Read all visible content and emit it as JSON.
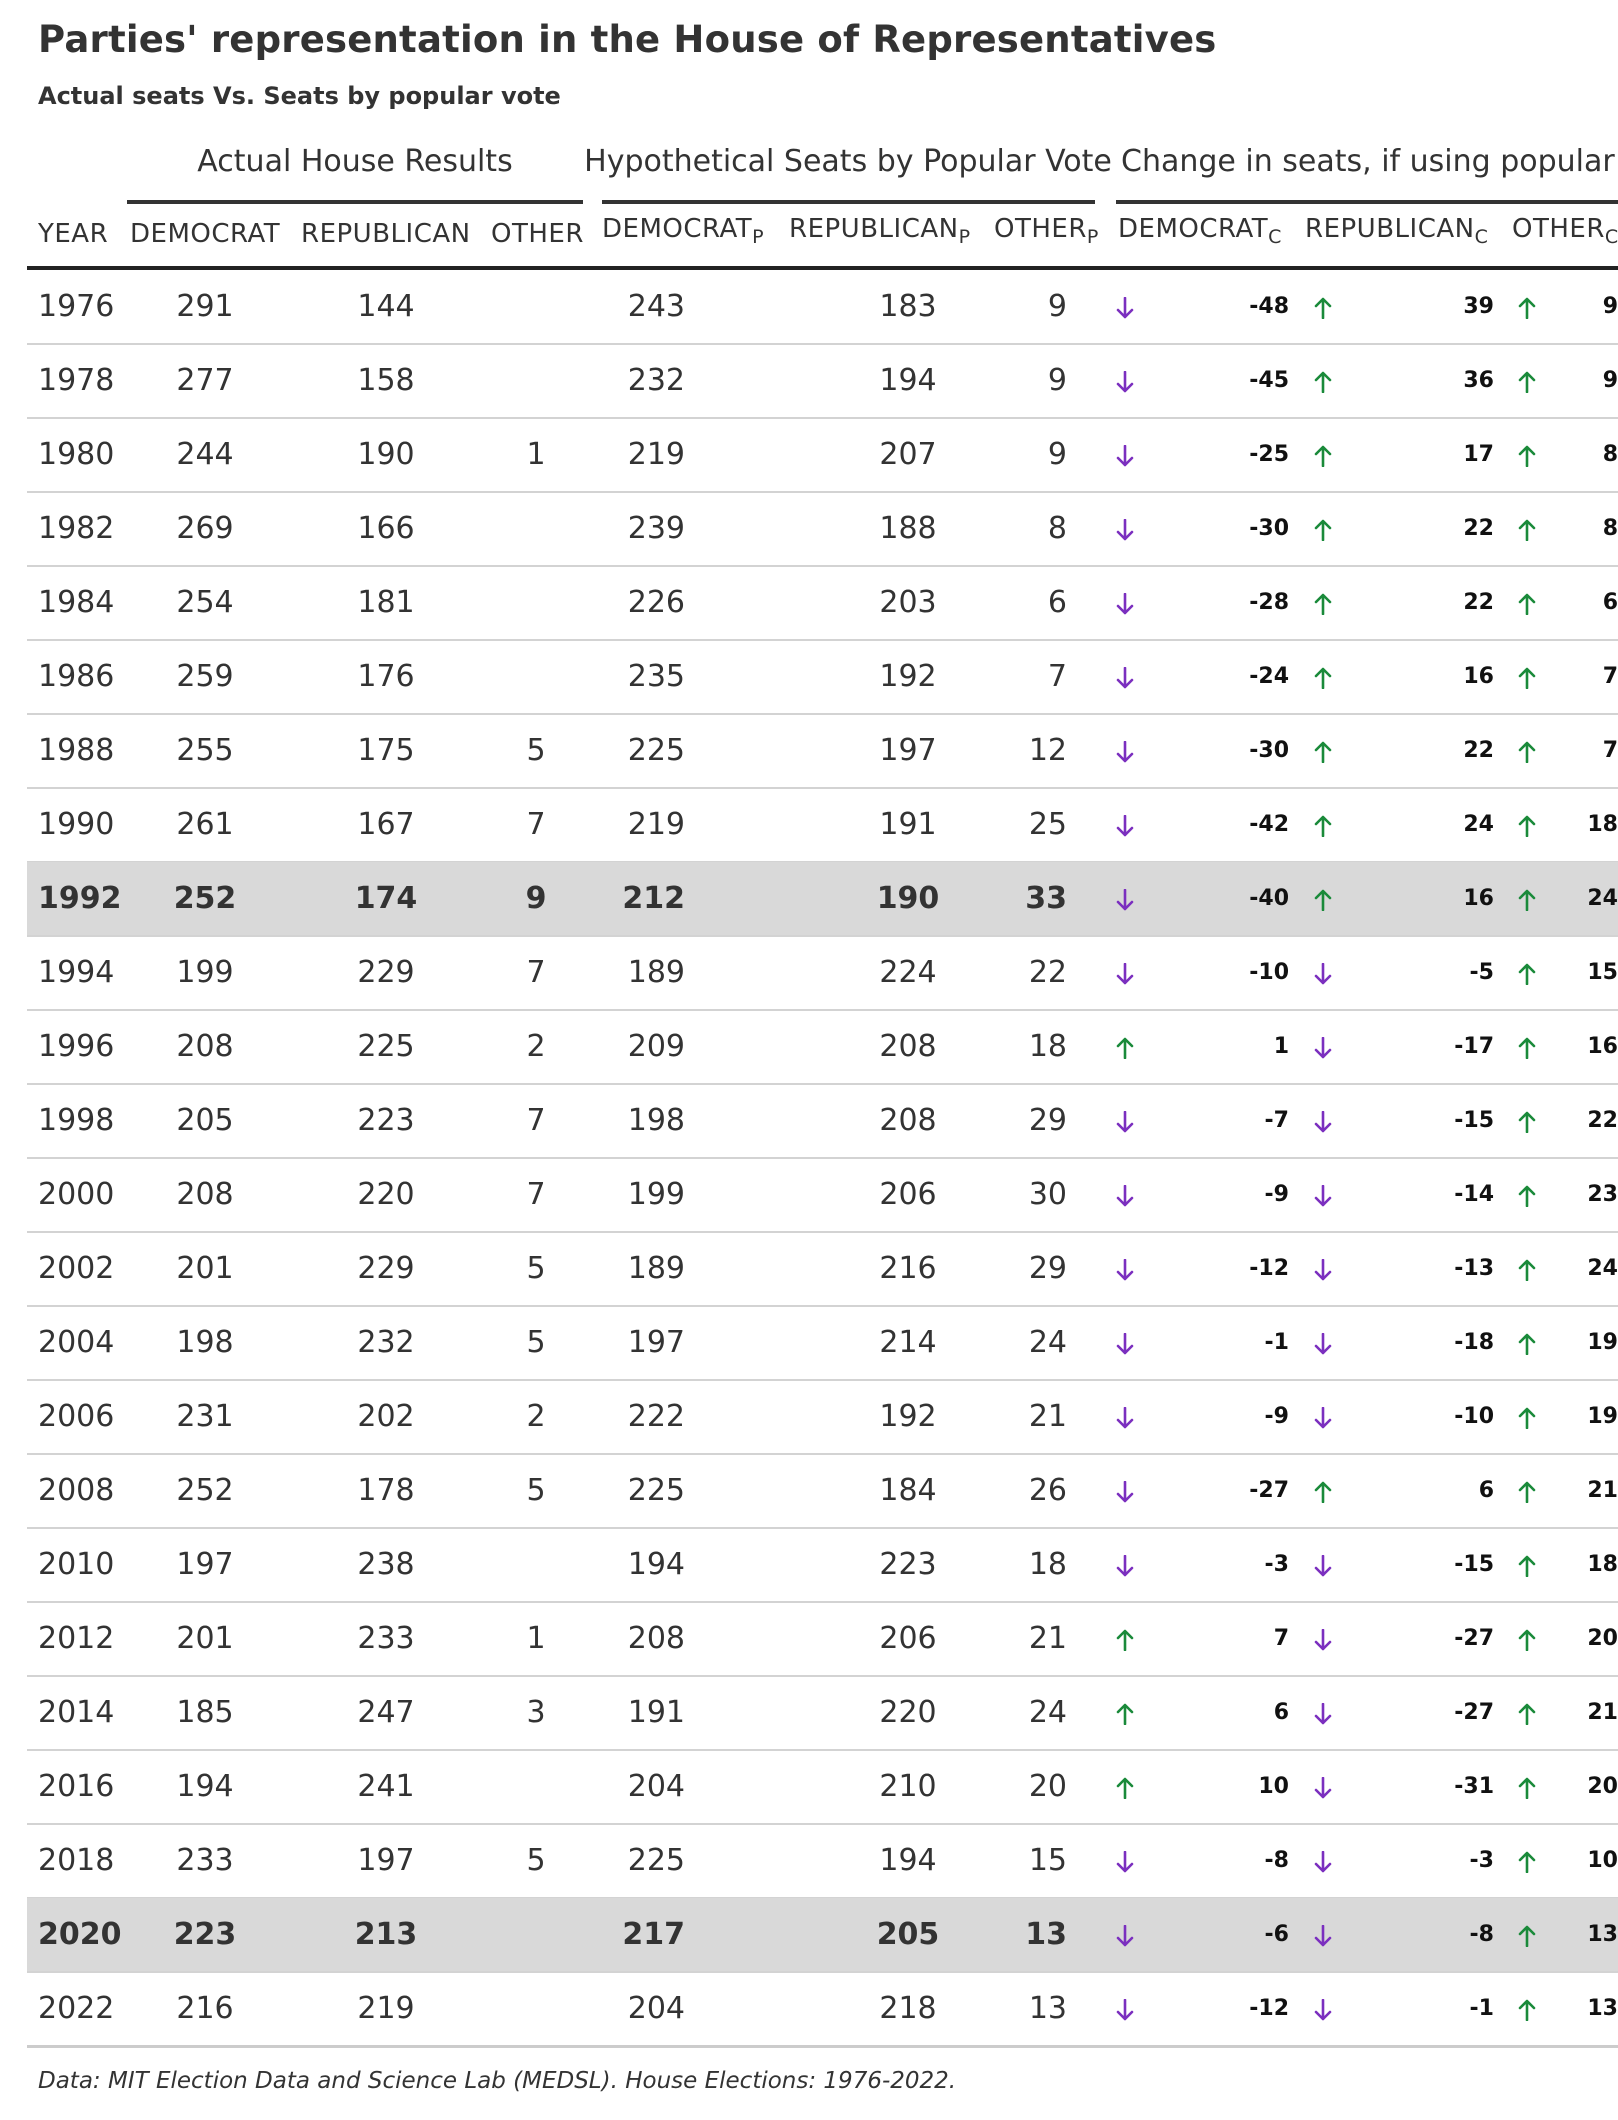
{
  "title": "Parties' representation in the House of Representatives",
  "subtitle": "Actual seats Vs. Seats by popular vote",
  "spanners": [
    "Actual House Results",
    "Hypothetical Seats by Popular Vote",
    "Change in seats, if using popular vote"
  ],
  "columns": {
    "year": "YEAR",
    "democrat": "DEMOCRAT",
    "republican": "REPUBLICAN",
    "other": "OTHER",
    "democrat_p": "DEMOCRAT",
    "republican_p": "REPUBLICAN",
    "other_p": "OTHER",
    "democrat_c": "DEMOCRAT",
    "republican_c": "REPUBLICAN",
    "other_c": "OTHER",
    "sub_p": "P",
    "sub_c": "C"
  },
  "colors": {
    "up": "#1a8a3a",
    "down": "#7b2fbf",
    "highlight": "#d9d9d9"
  },
  "footer": "Data: MIT Election Data and Science Lab (MEDSL). House Elections: 1976-2022.",
  "chart_data": {
    "type": "table",
    "highlighted_years": [
      "1992",
      "2020"
    ],
    "rows": [
      {
        "year": "1976",
        "dem": "291",
        "rep": "144",
        "other": "",
        "dem_p": "243",
        "rep_p": "183",
        "other_p": "9",
        "dem_c": "-48",
        "rep_c": "39",
        "other_c": "9"
      },
      {
        "year": "1978",
        "dem": "277",
        "rep": "158",
        "other": "",
        "dem_p": "232",
        "rep_p": "194",
        "other_p": "9",
        "dem_c": "-45",
        "rep_c": "36",
        "other_c": "9"
      },
      {
        "year": "1980",
        "dem": "244",
        "rep": "190",
        "other": "1",
        "dem_p": "219",
        "rep_p": "207",
        "other_p": "9",
        "dem_c": "-25",
        "rep_c": "17",
        "other_c": "8"
      },
      {
        "year": "1982",
        "dem": "269",
        "rep": "166",
        "other": "",
        "dem_p": "239",
        "rep_p": "188",
        "other_p": "8",
        "dem_c": "-30",
        "rep_c": "22",
        "other_c": "8"
      },
      {
        "year": "1984",
        "dem": "254",
        "rep": "181",
        "other": "",
        "dem_p": "226",
        "rep_p": "203",
        "other_p": "6",
        "dem_c": "-28",
        "rep_c": "22",
        "other_c": "6"
      },
      {
        "year": "1986",
        "dem": "259",
        "rep": "176",
        "other": "",
        "dem_p": "235",
        "rep_p": "192",
        "other_p": "7",
        "dem_c": "-24",
        "rep_c": "16",
        "other_c": "7"
      },
      {
        "year": "1988",
        "dem": "255",
        "rep": "175",
        "other": "5",
        "dem_p": "225",
        "rep_p": "197",
        "other_p": "12",
        "dem_c": "-30",
        "rep_c": "22",
        "other_c": "7"
      },
      {
        "year": "1990",
        "dem": "261",
        "rep": "167",
        "other": "7",
        "dem_p": "219",
        "rep_p": "191",
        "other_p": "25",
        "dem_c": "-42",
        "rep_c": "24",
        "other_c": "18"
      },
      {
        "year": "1992",
        "dem": "252",
        "rep": "174",
        "other": "9",
        "dem_p": "212",
        "rep_p": "190",
        "other_p": "33",
        "dem_c": "-40",
        "rep_c": "16",
        "other_c": "24"
      },
      {
        "year": "1994",
        "dem": "199",
        "rep": "229",
        "other": "7",
        "dem_p": "189",
        "rep_p": "224",
        "other_p": "22",
        "dem_c": "-10",
        "rep_c": "-5",
        "other_c": "15"
      },
      {
        "year": "1996",
        "dem": "208",
        "rep": "225",
        "other": "2",
        "dem_p": "209",
        "rep_p": "208",
        "other_p": "18",
        "dem_c": "1",
        "rep_c": "-17",
        "other_c": "16"
      },
      {
        "year": "1998",
        "dem": "205",
        "rep": "223",
        "other": "7",
        "dem_p": "198",
        "rep_p": "208",
        "other_p": "29",
        "dem_c": "-7",
        "rep_c": "-15",
        "other_c": "22"
      },
      {
        "year": "2000",
        "dem": "208",
        "rep": "220",
        "other": "7",
        "dem_p": "199",
        "rep_p": "206",
        "other_p": "30",
        "dem_c": "-9",
        "rep_c": "-14",
        "other_c": "23"
      },
      {
        "year": "2002",
        "dem": "201",
        "rep": "229",
        "other": "5",
        "dem_p": "189",
        "rep_p": "216",
        "other_p": "29",
        "dem_c": "-12",
        "rep_c": "-13",
        "other_c": "24"
      },
      {
        "year": "2004",
        "dem": "198",
        "rep": "232",
        "other": "5",
        "dem_p": "197",
        "rep_p": "214",
        "other_p": "24",
        "dem_c": "-1",
        "rep_c": "-18",
        "other_c": "19"
      },
      {
        "year": "2006",
        "dem": "231",
        "rep": "202",
        "other": "2",
        "dem_p": "222",
        "rep_p": "192",
        "other_p": "21",
        "dem_c": "-9",
        "rep_c": "-10",
        "other_c": "19"
      },
      {
        "year": "2008",
        "dem": "252",
        "rep": "178",
        "other": "5",
        "dem_p": "225",
        "rep_p": "184",
        "other_p": "26",
        "dem_c": "-27",
        "rep_c": "6",
        "other_c": "21"
      },
      {
        "year": "2010",
        "dem": "197",
        "rep": "238",
        "other": "",
        "dem_p": "194",
        "rep_p": "223",
        "other_p": "18",
        "dem_c": "-3",
        "rep_c": "-15",
        "other_c": "18"
      },
      {
        "year": "2012",
        "dem": "201",
        "rep": "233",
        "other": "1",
        "dem_p": "208",
        "rep_p": "206",
        "other_p": "21",
        "dem_c": "7",
        "rep_c": "-27",
        "other_c": "20"
      },
      {
        "year": "2014",
        "dem": "185",
        "rep": "247",
        "other": "3",
        "dem_p": "191",
        "rep_p": "220",
        "other_p": "24",
        "dem_c": "6",
        "rep_c": "-27",
        "other_c": "21"
      },
      {
        "year": "2016",
        "dem": "194",
        "rep": "241",
        "other": "",
        "dem_p": "204",
        "rep_p": "210",
        "other_p": "20",
        "dem_c": "10",
        "rep_c": "-31",
        "other_c": "20"
      },
      {
        "year": "2018",
        "dem": "233",
        "rep": "197",
        "other": "5",
        "dem_p": "225",
        "rep_p": "194",
        "other_p": "15",
        "dem_c": "-8",
        "rep_c": "-3",
        "other_c": "10"
      },
      {
        "year": "2020",
        "dem": "223",
        "rep": "213",
        "other": "",
        "dem_p": "217",
        "rep_p": "205",
        "other_p": "13",
        "dem_c": "-6",
        "rep_c": "-8",
        "other_c": "13"
      },
      {
        "year": "2022",
        "dem": "216",
        "rep": "219",
        "other": "",
        "dem_p": "204",
        "rep_p": "218",
        "other_p": "13",
        "dem_c": "-12",
        "rep_c": "-1",
        "other_c": "13"
      }
    ]
  }
}
